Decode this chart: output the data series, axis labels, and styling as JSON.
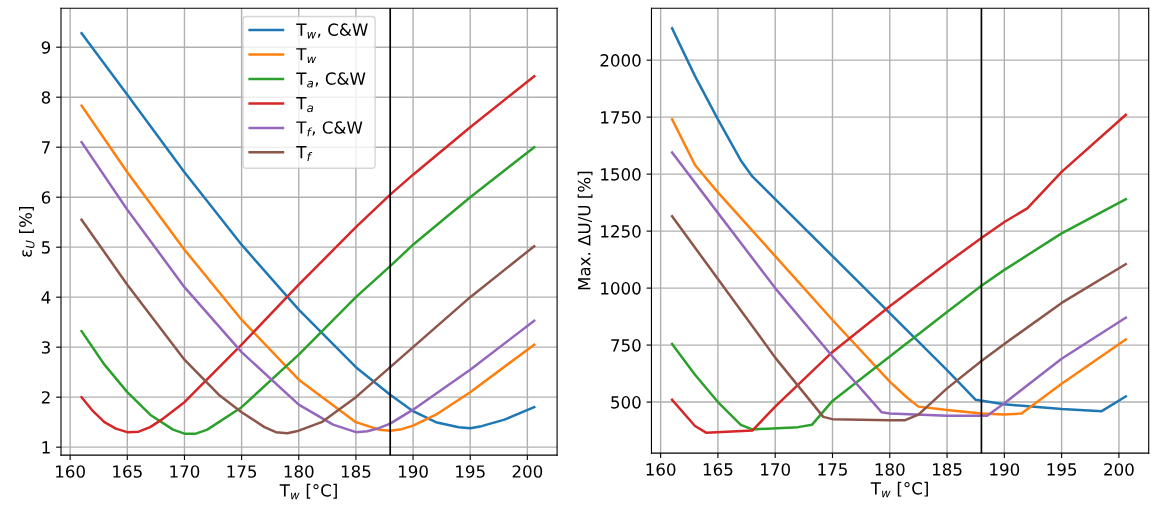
{
  "chart_data": [
    {
      "type": "line",
      "xlabel": "T$_{w}$ [°C]",
      "ylabel": "ε$_{U}$ [%]",
      "xlim": [
        159.2,
        202.6
      ],
      "ylim": [
        0.84,
        9.78
      ],
      "xticks": [
        160,
        165,
        170,
        175,
        180,
        185,
        190,
        195,
        200
      ],
      "yticks": [
        1,
        2,
        3,
        4,
        5,
        6,
        7,
        8,
        9
      ],
      "grid": true,
      "legend": "top",
      "marker": "none",
      "line_style": "solid",
      "ref_lines": [
        {
          "axis": "x",
          "value": 188,
          "color": "#000000"
        }
      ],
      "series": [
        {
          "name": "T$_{w}$, C&W",
          "color": "#1f77b4",
          "x": [
            161,
            165,
            170,
            175,
            180,
            185,
            188,
            190,
            192,
            194,
            195,
            196,
            198,
            200.6
          ],
          "values": [
            9.28,
            8.05,
            6.5,
            5.05,
            3.75,
            2.6,
            2.05,
            1.72,
            1.5,
            1.4,
            1.38,
            1.42,
            1.55,
            1.8
          ]
        },
        {
          "name": "T$_{w}$",
          "color": "#ff7f0e",
          "x": [
            161,
            165,
            170,
            175,
            180,
            185,
            187,
            188,
            189,
            190,
            192,
            195,
            200.6
          ],
          "values": [
            7.83,
            6.5,
            4.95,
            3.55,
            2.35,
            1.5,
            1.35,
            1.33,
            1.36,
            1.43,
            1.65,
            2.1,
            3.05
          ]
        },
        {
          "name": "T$_{a}$, C&W",
          "color": "#2ca02c",
          "x": [
            161,
            163,
            165,
            167,
            169,
            170,
            171,
            172,
            175,
            180,
            185,
            188,
            190,
            195,
            200.6
          ],
          "values": [
            3.32,
            2.65,
            2.1,
            1.65,
            1.35,
            1.27,
            1.27,
            1.35,
            1.8,
            2.85,
            4.0,
            4.62,
            5.05,
            6.0,
            7.0
          ]
        },
        {
          "name": "T$_{a}$",
          "color": "#d62728",
          "x": [
            161,
            162,
            163,
            164,
            165,
            166,
            167,
            168,
            170,
            175,
            180,
            185,
            188,
            190,
            195,
            200.6
          ],
          "values": [
            2.0,
            1.72,
            1.5,
            1.37,
            1.3,
            1.31,
            1.4,
            1.55,
            1.9,
            3.05,
            4.25,
            5.4,
            6.05,
            6.45,
            7.4,
            8.42
          ]
        },
        {
          "name": "T$_{f}$, C&W",
          "color": "#9467bd",
          "x": [
            161,
            165,
            170,
            175,
            180,
            183,
            185,
            186,
            187,
            188,
            190,
            195,
            200.6
          ],
          "values": [
            7.1,
            5.75,
            4.2,
            2.9,
            1.85,
            1.45,
            1.3,
            1.32,
            1.38,
            1.47,
            1.75,
            2.55,
            3.53
          ]
        },
        {
          "name": "T$_{f}$",
          "color": "#8c564b",
          "x": [
            161,
            165,
            170,
            173,
            175,
            177,
            178,
            179,
            180,
            182,
            185,
            188,
            190,
            195,
            200.6
          ],
          "values": [
            5.55,
            4.25,
            2.75,
            2.05,
            1.7,
            1.4,
            1.3,
            1.28,
            1.33,
            1.5,
            2.0,
            2.6,
            3.0,
            4.0,
            5.02
          ]
        }
      ]
    },
    {
      "type": "line",
      "xlabel": "T$_{w}$ [°C]",
      "ylabel": "Max. ΔU/U [%]",
      "xlim": [
        159.2,
        202.6
      ],
      "ylim": [
        276,
        2228
      ],
      "xticks": [
        160,
        165,
        170,
        175,
        180,
        185,
        190,
        195,
        200
      ],
      "yticks": [
        500,
        750,
        1000,
        1250,
        1500,
        1750,
        2000
      ],
      "grid": true,
      "marker": "none",
      "line_style": "solid",
      "ref_lines": [
        {
          "axis": "x",
          "value": 188,
          "color": "#000000"
        }
      ],
      "series": [
        {
          "color": "#1f77b4",
          "x": [
            161,
            163,
            165,
            167,
            168,
            170,
            175,
            180,
            185,
            187.5,
            190,
            195,
            198.5,
            200.6
          ],
          "values": [
            2140,
            1930,
            1740,
            1560,
            1490,
            1390,
            1140,
            890,
            640,
            510,
            490,
            470,
            460,
            525
          ]
        },
        {
          "color": "#ff7f0e",
          "x": [
            161,
            163,
            164,
            165,
            170,
            175,
            180,
            181.5,
            182.5,
            185,
            188,
            190,
            191.5,
            195,
            200.6
          ],
          "values": [
            1740,
            1540,
            1480,
            1420,
            1140,
            860,
            590,
            520,
            480,
            465,
            450,
            445,
            450,
            580,
            775
          ]
        },
        {
          "color": "#2ca02c",
          "x": [
            161,
            163,
            165,
            167,
            168,
            172,
            173.2,
            175,
            180,
            185,
            188,
            190,
            195,
            200.6
          ],
          "values": [
            755,
            620,
            500,
            400,
            380,
            390,
            400,
            505,
            700,
            895,
            1010,
            1080,
            1240,
            1390
          ]
        },
        {
          "color": "#d62728",
          "x": [
            161,
            163,
            164,
            168,
            170,
            175,
            180,
            185,
            188,
            190,
            192,
            195,
            200.6
          ],
          "values": [
            510,
            395,
            365,
            375,
            480,
            720,
            920,
            1110,
            1220,
            1290,
            1350,
            1510,
            1760
          ]
        },
        {
          "color": "#9467bd",
          "x": [
            161,
            165,
            170,
            175,
            179.3,
            180,
            185,
            188.5,
            190,
            195,
            200.6
          ],
          "values": [
            1595,
            1330,
            1000,
            700,
            455,
            450,
            440,
            440,
            495,
            690,
            870
          ]
        },
        {
          "color": "#8c564b",
          "x": [
            161,
            165,
            170,
            174.2,
            175,
            180,
            181.3,
            182.5,
            185,
            188,
            190,
            195,
            200.6
          ],
          "values": [
            1315,
            1040,
            695,
            435,
            425,
            420,
            420,
            445,
            560,
            680,
            755,
            935,
            1105
          ]
        }
      ]
    }
  ]
}
